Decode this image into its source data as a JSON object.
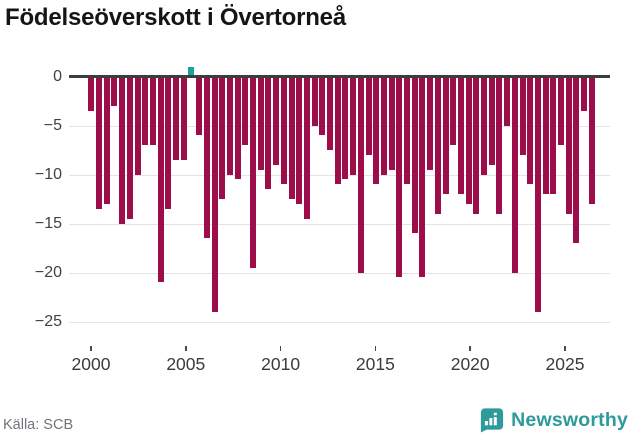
{
  "chart": {
    "title": "Födelseöverskott i Övertorneå",
    "source": "Källa: SCB",
    "brand": "Newsworthy"
  },
  "colors": {
    "bar_negative": "#9c0d49",
    "bar_positive": "#1aa0a0",
    "zero_line": "#3d3d3d",
    "gridline": "#e4e4e4",
    "axis_text": "#3f3f46",
    "title_text": "#151515",
    "source_text": "#73737a",
    "brand_teal": "#2e9a9a"
  },
  "chart_data": {
    "type": "bar",
    "title": "Födelseöverskott i Övertorneå",
    "xlabel": "",
    "ylabel": "",
    "source": "Källa: SCB",
    "x_tick_labels": [
      "2000",
      "2005",
      "2010",
      "2015",
      "2020",
      "2025"
    ],
    "y_tick_labels": [
      "0",
      "−5",
      "−10",
      "−15",
      "−20",
      "−25"
    ],
    "y_tick_values": [
      0,
      -5,
      -10,
      -15,
      -20,
      -25
    ],
    "ylim": [
      -26.5,
      1.5
    ],
    "x_span_years": [
      2000,
      2026
    ],
    "grid": "horizontal",
    "legend": "none",
    "values": [
      -3.5,
      -13.5,
      -13,
      -3,
      -15,
      -14.5,
      -10,
      -7,
      -7,
      -21,
      -13.5,
      -8.5,
      -8.5,
      1,
      -6,
      -16.5,
      -24,
      -12.5,
      -10,
      -10.5,
      -7,
      -19.5,
      -9.5,
      -11.5,
      -9,
      -11,
      -12.5,
      -13,
      -14.5,
      -5,
      -6,
      -7.5,
      -11,
      -10.5,
      -10,
      -20,
      -8,
      -11,
      -10,
      -9.5,
      -20.5,
      -11,
      -16,
      -20.5,
      -9.5,
      -14,
      -12,
      -7,
      -12,
      -13,
      -14,
      -10,
      -9,
      -14,
      -5,
      -20,
      -8,
      -11,
      -24,
      -12,
      -12,
      -7,
      -14,
      -17,
      -3.5,
      -13
    ],
    "positive_color_indices": [
      13
    ]
  }
}
